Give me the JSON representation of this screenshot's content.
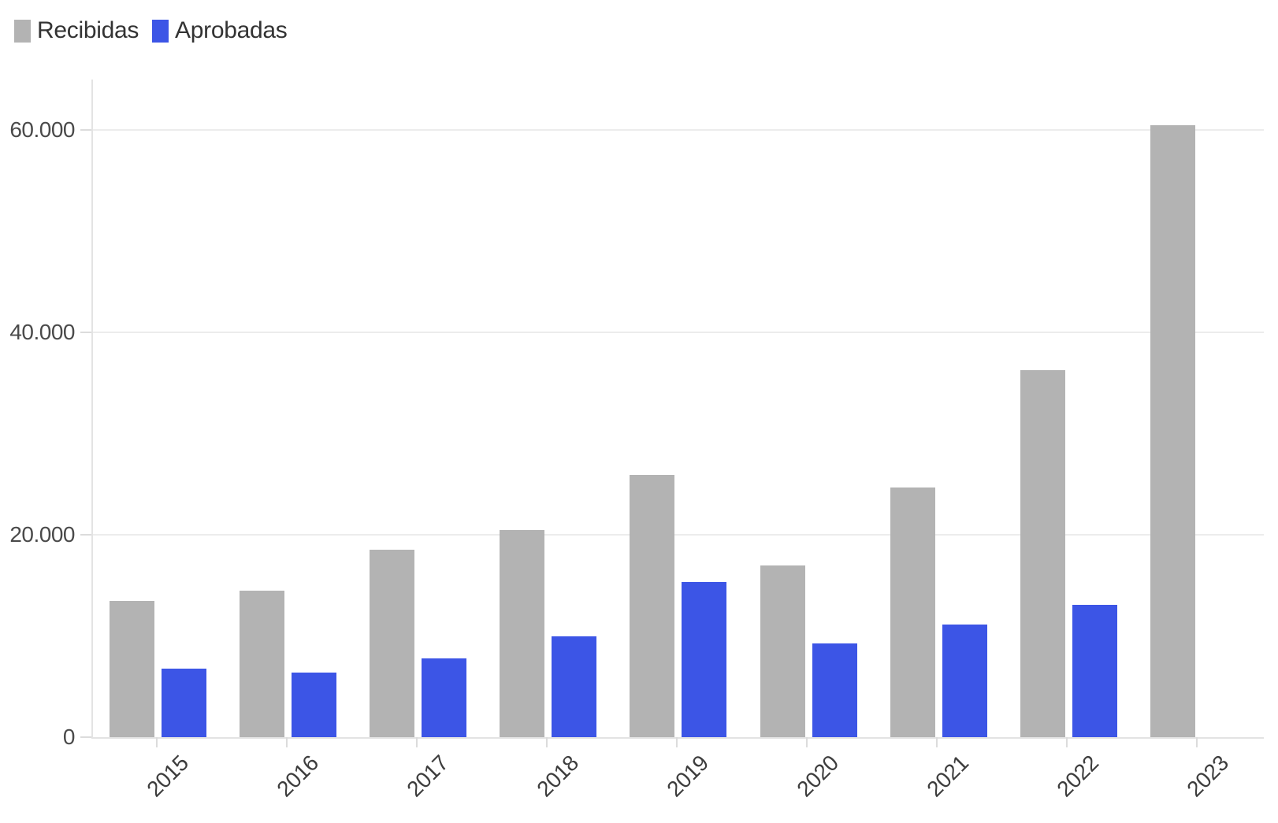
{
  "chart_data": {
    "type": "bar",
    "title": "",
    "categories": [
      "2015",
      "2016",
      "2017",
      "2018",
      "2019",
      "2020",
      "2021",
      "2022",
      "2023"
    ],
    "series": [
      {
        "name": "Recibidas",
        "color": "#b3b3b3",
        "values": [
          13500,
          14500,
          18500,
          20500,
          25900,
          17000,
          24700,
          36300,
          60500
        ]
      },
      {
        "name": "Aprobadas",
        "color": "#3c55e6",
        "values": [
          6800,
          6400,
          7800,
          10000,
          15300,
          9300,
          11100,
          13100,
          null
        ]
      }
    ],
    "xlabel": "",
    "ylabel": "",
    "ylim": [
      0,
      65000
    ],
    "y_ticks": [
      {
        "value": 0,
        "label": "0"
      },
      {
        "value": 20000,
        "label": "20.000"
      },
      {
        "value": 40000,
        "label": "40.000"
      },
      {
        "value": 60000,
        "label": "60.000"
      }
    ],
    "grid": true,
    "legend_position": "top-left",
    "colors": {
      "background": "#ffffff",
      "gridline": "#ececec",
      "axis_line": "#e3e3e3",
      "tick": "#dcdcdc",
      "y_label_text": "#4a4a4a",
      "x_label_text": "#3d3d3d",
      "legend_text": "#333333"
    }
  }
}
